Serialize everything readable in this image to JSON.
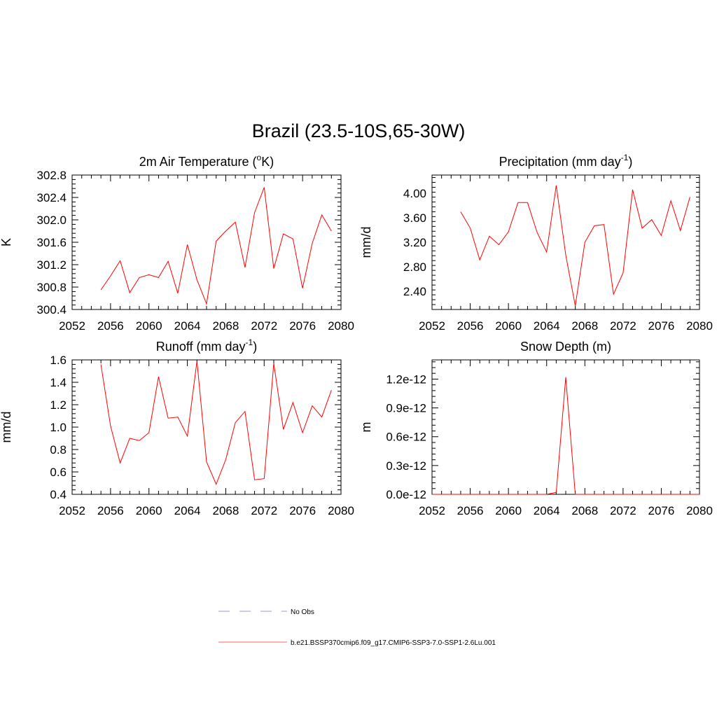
{
  "title": "Brazil (23.5-10S,65-30W)",
  "legend": {
    "items": [
      {
        "label": "No Obs",
        "color": "#9999dd",
        "dash": true
      },
      {
        "label": "b.e21.BSSP370cmip6.f09_g17.CMIP6-SSP3-7.0-SSP1-2.6Lu.001",
        "color": "#ff6666",
        "dash": false
      }
    ]
  },
  "line_color": "#ff0000",
  "chart_data": [
    {
      "type": "line",
      "title": "2m Air Temperature (°K)",
      "title_parts": {
        "base": "2m Air Temperature (",
        "sup": "o",
        "tail": "K)"
      },
      "ylabel": "K",
      "xlim": [
        2052,
        2080
      ],
      "ylim": [
        300.4,
        302.8
      ],
      "xticks": [
        2052,
        2056,
        2060,
        2064,
        2068,
        2072,
        2076,
        2080
      ],
      "yticks": [
        "300.4",
        "300.8",
        "301.2",
        "301.6",
        "302.0",
        "302.4",
        "302.8"
      ],
      "x": [
        2055,
        2056,
        2057,
        2058,
        2059,
        2060,
        2061,
        2062,
        2063,
        2064,
        2065,
        2066,
        2067,
        2068,
        2069,
        2070,
        2071,
        2072,
        2073,
        2074,
        2075,
        2076,
        2077,
        2078,
        2079
      ],
      "series": [
        {
          "values": [
            300.75,
            301.0,
            301.27,
            300.7,
            300.97,
            301.02,
            300.97,
            301.26,
            300.69,
            301.56,
            300.93,
            300.5,
            301.62,
            301.8,
            301.96,
            301.15,
            302.13,
            302.58,
            301.13,
            301.75,
            301.66,
            300.78,
            301.58,
            302.09,
            301.8
          ]
        }
      ]
    },
    {
      "type": "line",
      "title": "Precipitation (mm day-1)",
      "title_parts": {
        "base": "Precipitation (mm day",
        "sup": "-1",
        "tail": ")"
      },
      "ylabel": "mm/d",
      "xlim": [
        2052,
        2080
      ],
      "ylim": [
        2.1,
        4.3
      ],
      "xticks": [
        2052,
        2056,
        2060,
        2064,
        2068,
        2072,
        2076,
        2080
      ],
      "yticks": [
        "2.40",
        "2.80",
        "3.20",
        "3.60",
        "4.00"
      ],
      "x": [
        2055,
        2056,
        2057,
        2058,
        2059,
        2060,
        2061,
        2062,
        2063,
        2064,
        2065,
        2066,
        2067,
        2068,
        2069,
        2070,
        2071,
        2072,
        2073,
        2074,
        2075,
        2076,
        2077,
        2078,
        2079
      ],
      "series": [
        {
          "values": [
            3.7,
            3.43,
            2.91,
            3.3,
            3.16,
            3.37,
            3.85,
            3.85,
            3.36,
            3.04,
            4.13,
            2.99,
            2.16,
            3.2,
            3.47,
            3.49,
            2.35,
            2.7,
            4.06,
            3.43,
            3.57,
            3.31,
            3.88,
            3.39,
            3.94
          ]
        }
      ]
    },
    {
      "type": "line",
      "title": "Runoff (mm day-1)",
      "title_parts": {
        "base": "Runoff (mm day",
        "sup": "-1",
        "tail": ")"
      },
      "ylabel": "mm/d",
      "xlim": [
        2052,
        2080
      ],
      "ylim": [
        0.4,
        1.6
      ],
      "xticks": [
        2052,
        2056,
        2060,
        2064,
        2068,
        2072,
        2076,
        2080
      ],
      "yticks": [
        "0.4",
        "0.6",
        "0.8",
        "1.0",
        "1.2",
        "1.4",
        "1.6"
      ],
      "x": [
        2055,
        2056,
        2057,
        2058,
        2059,
        2060,
        2061,
        2062,
        2063,
        2064,
        2065,
        2066,
        2067,
        2068,
        2069,
        2070,
        2071,
        2072,
        2073,
        2074,
        2075,
        2076,
        2077,
        2078,
        2079
      ],
      "series": [
        {
          "values": [
            1.56,
            1.01,
            0.68,
            0.9,
            0.88,
            0.95,
            1.45,
            1.08,
            1.09,
            0.92,
            1.59,
            0.69,
            0.49,
            0.71,
            1.04,
            1.14,
            0.53,
            0.54,
            1.57,
            0.98,
            1.22,
            0.95,
            1.19,
            1.09,
            1.33
          ]
        }
      ]
    },
    {
      "type": "line",
      "title": "Snow Depth (m)",
      "title_parts": {
        "base": "Snow Depth (m)",
        "sup": "",
        "tail": ""
      },
      "ylabel": "m",
      "xlim": [
        2052,
        2080
      ],
      "ylim": [
        0,
        1.4
      ],
      "yunit_note": "values in units of 1e-12 m",
      "xticks": [
        2052,
        2056,
        2060,
        2064,
        2068,
        2072,
        2076,
        2080
      ],
      "yticks": [
        "0.0e-12",
        "0.3e-12",
        "0.6e-12",
        "0.9e-12",
        "1.2e-12"
      ],
      "x": [
        2052,
        2064,
        2065,
        2066,
        2067,
        2080
      ],
      "series": [
        {
          "values": [
            0,
            0,
            0.02,
            1.22,
            0,
            0
          ]
        }
      ]
    }
  ]
}
